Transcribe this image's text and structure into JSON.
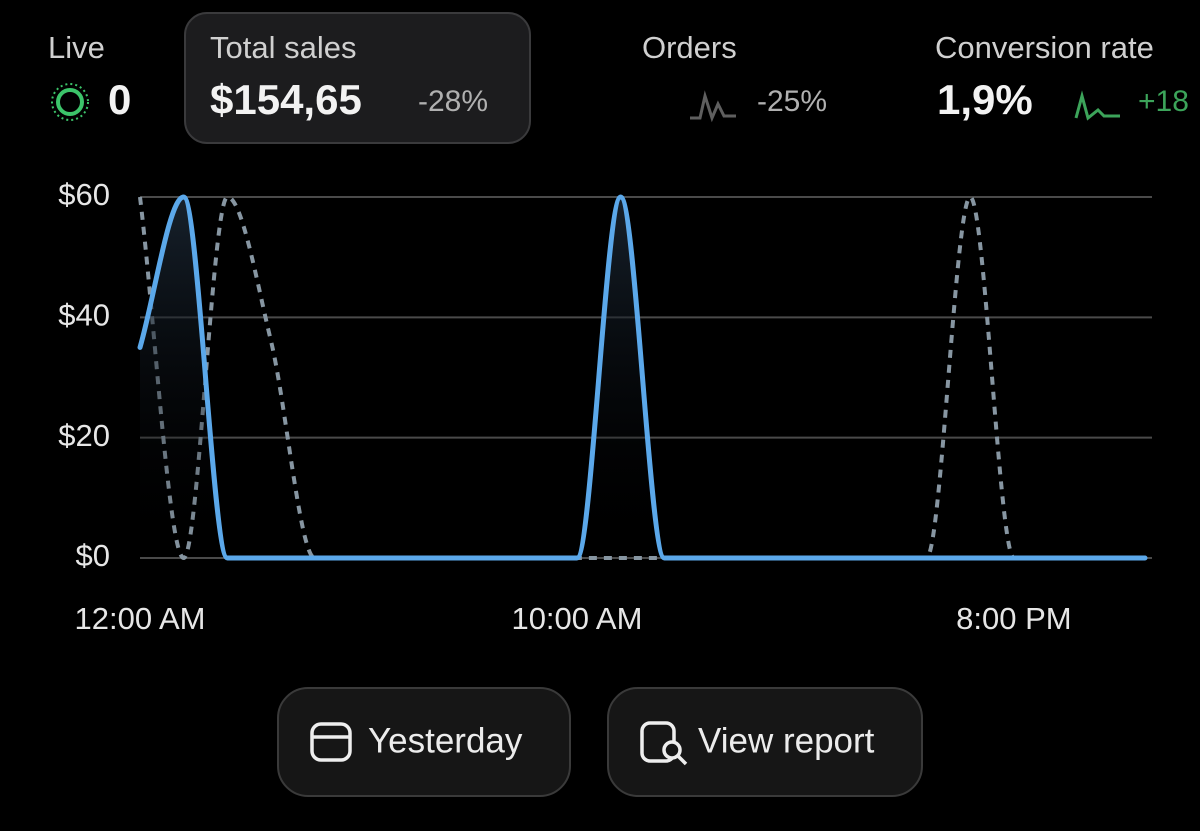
{
  "metrics": [
    {
      "label": "Live",
      "value": "0"
    },
    {
      "label": "Total sales",
      "value": "$154,65",
      "change": "-28%"
    },
    {
      "label": "Orders",
      "change": "-25%"
    },
    {
      "label": "Conversion rate",
      "value": "1,9%",
      "change": "+18"
    }
  ],
  "chart_data": {
    "type": "line",
    "x": [
      0,
      1,
      2,
      3,
      4,
      5,
      6,
      7,
      8,
      9,
      10,
      11,
      12,
      13,
      14,
      15,
      16,
      17,
      18,
      19,
      20,
      21,
      22,
      23
    ],
    "series": [
      {
        "color": "#5ba8ea",
        "line_style": "solid",
        "area": true,
        "values": [
          35,
          60,
          0,
          0,
          0,
          0,
          0,
          0,
          0,
          0,
          0,
          60,
          0,
          0,
          0,
          0,
          0,
          0,
          0,
          0,
          0,
          0,
          0,
          0
        ]
      },
      {
        "color": "#8796a2",
        "line_style": "dotted",
        "area": false,
        "values": [
          60,
          0,
          60,
          36,
          0,
          0,
          0,
          0,
          0,
          0,
          0,
          0,
          0,
          0,
          0,
          0,
          0,
          0,
          0,
          60,
          0,
          0,
          0,
          0
        ]
      }
    ],
    "xlim": [
      0,
      23
    ],
    "xticks": [
      {
        "value": 0,
        "label": "12:00 AM"
      },
      {
        "value": 10,
        "label": "10:00 AM"
      },
      {
        "value": 20,
        "label": "8:00 PM"
      }
    ],
    "ylim": [
      0,
      60
    ],
    "yticks": [
      {
        "value": 0,
        "label": "$0"
      },
      {
        "value": 20,
        "label": "$20"
      },
      {
        "value": 40,
        "label": "$40"
      },
      {
        "value": 60,
        "label": "$60"
      }
    ],
    "grid": true
  },
  "buttons": [
    "Yesterday",
    "View report"
  ]
}
